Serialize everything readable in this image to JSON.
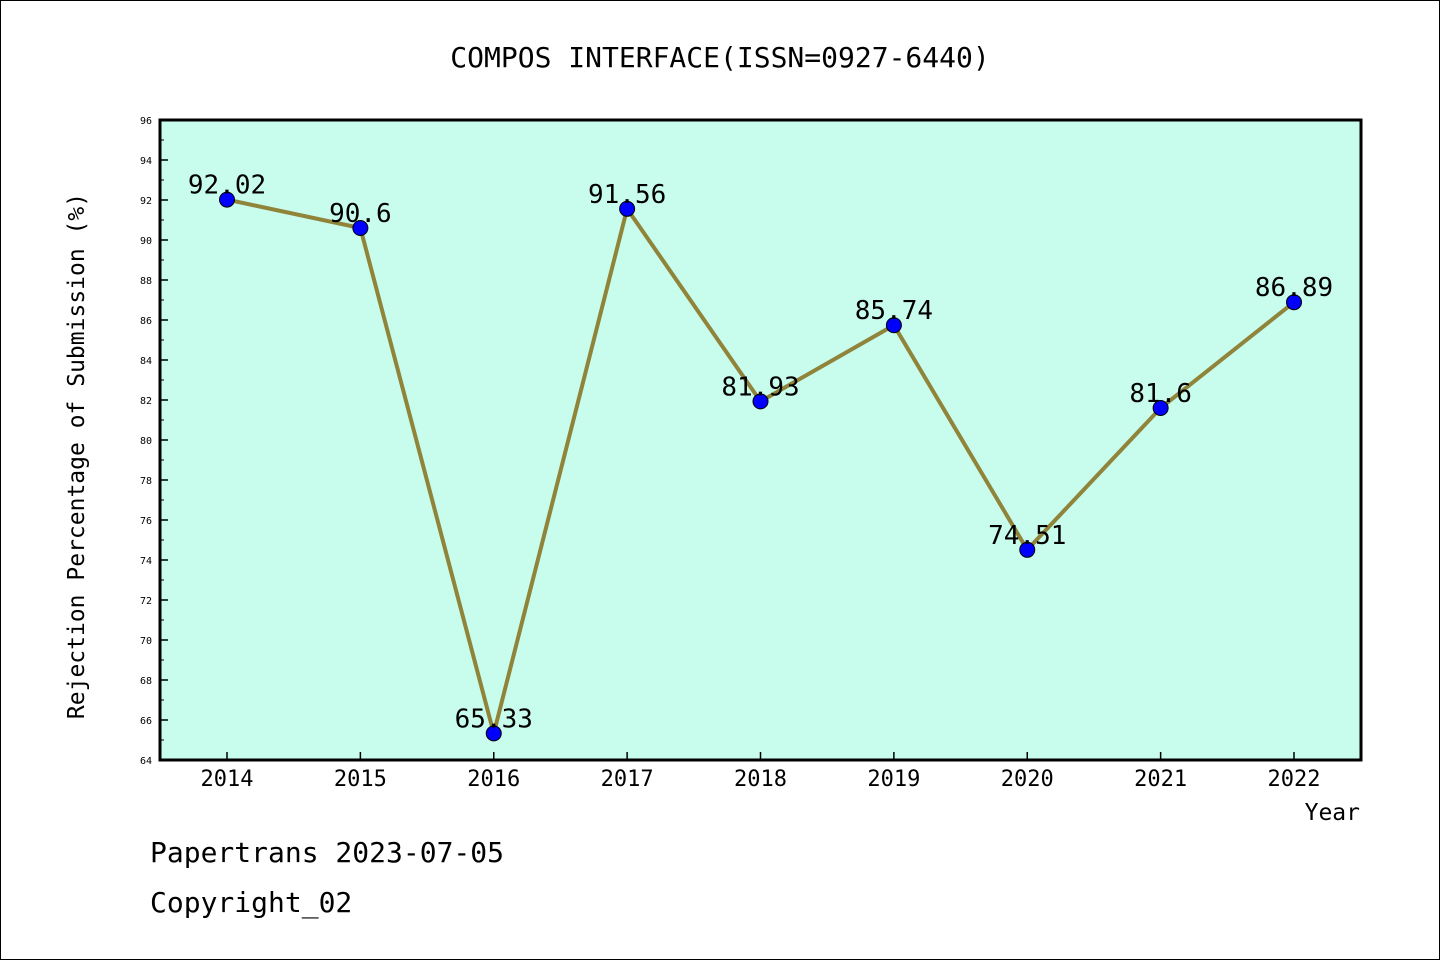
{
  "chart_data": {
    "type": "line",
    "title": "COMPOS INTERFACE(ISSN=0927-6440)",
    "xlabel": "Year",
    "ylabel": "Rejection Percentage of Submission (%)",
    "categories": [
      "2014",
      "2015",
      "2016",
      "2017",
      "2018",
      "2019",
      "2020",
      "2021",
      "2022"
    ],
    "series": [
      {
        "values": [
          92.02,
          90.6,
          65.33,
          91.56,
          81.93,
          85.74,
          74.51,
          81.6,
          86.89
        ],
        "data_labels": [
          "92.02",
          "90.6",
          "65.33",
          "91.56",
          "81.93",
          "85.74",
          "74.51",
          "81.6",
          "86.89"
        ],
        "line_color": "#8f843a",
        "marker_color": "#0000ff"
      }
    ],
    "ylim": [
      64,
      96
    ],
    "yticks": [
      64,
      66,
      68,
      70,
      72,
      74,
      76,
      78,
      80,
      82,
      84,
      86,
      88,
      90,
      92,
      94,
      96
    ],
    "plot_background": "#c8fcec",
    "grid": false,
    "legend": "none"
  },
  "footer": {
    "line1": "Papertrans 2023-07-05",
    "line2": "Copyright_02"
  }
}
